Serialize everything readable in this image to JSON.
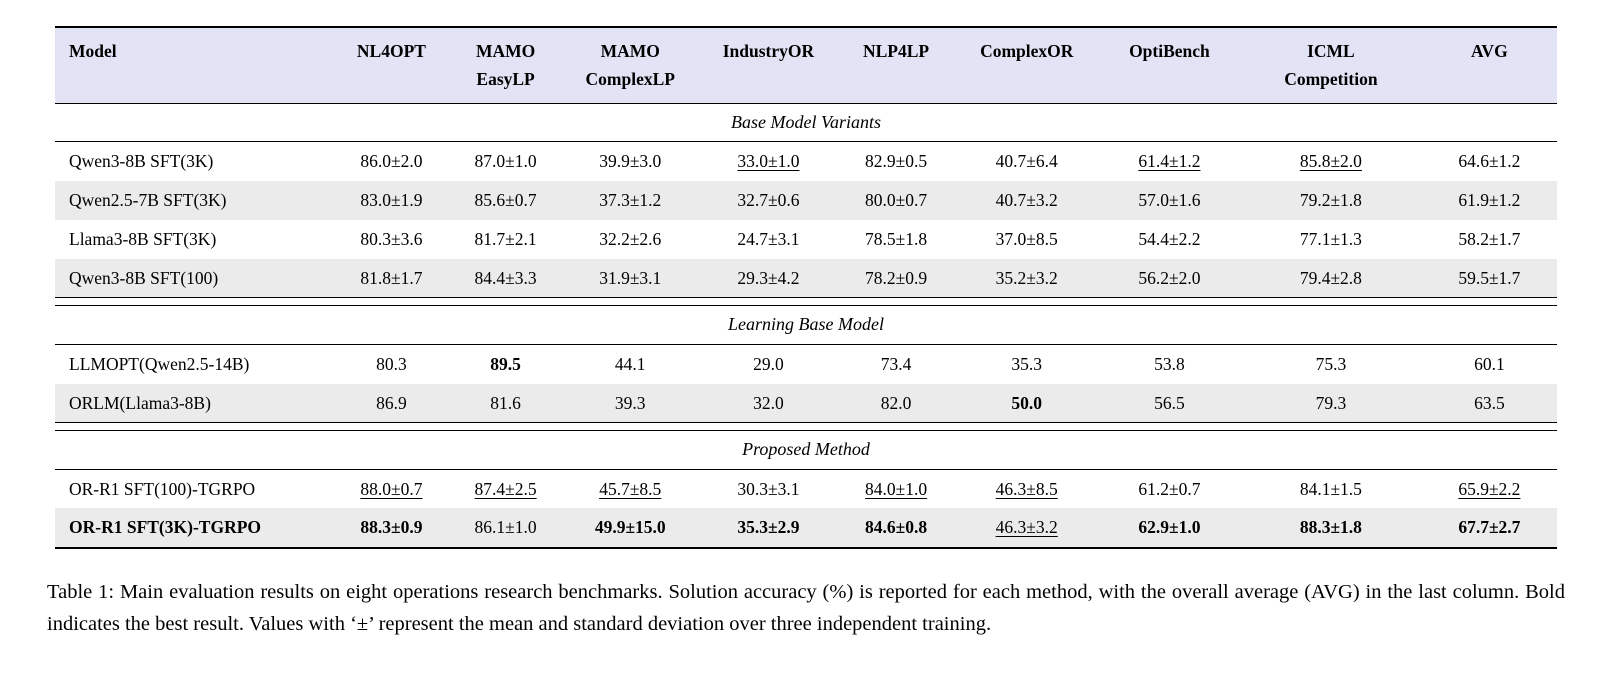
{
  "colors": {
    "header_bg": "#e3e3f6",
    "row_shade": "#ebebeb"
  },
  "table": {
    "columns": [
      {
        "label": "Model",
        "sublabel": ""
      },
      {
        "label": "NL4OPT",
        "sublabel": ""
      },
      {
        "label": "MAMO",
        "sublabel": "EasyLP"
      },
      {
        "label": "MAMO",
        "sublabel": "ComplexLP"
      },
      {
        "label": "IndustryOR",
        "sublabel": ""
      },
      {
        "label": "NLP4LP",
        "sublabel": ""
      },
      {
        "label": "ComplexOR",
        "sublabel": ""
      },
      {
        "label": "OptiBench",
        "sublabel": ""
      },
      {
        "label": "ICML",
        "sublabel": "Competition"
      },
      {
        "label": "AVG",
        "sublabel": ""
      }
    ],
    "sections": [
      {
        "title": "Base Model Variants",
        "rows": [
          {
            "model": "Qwen3-8B SFT(3K)",
            "model_bold": false,
            "shaded": false,
            "cells": [
              {
                "text": "86.0±2.0"
              },
              {
                "text": "87.0±1.0"
              },
              {
                "text": "39.9±3.0"
              },
              {
                "text": "33.0±1.0",
                "underline": true
              },
              {
                "text": "82.9±0.5"
              },
              {
                "text": "40.7±6.4"
              },
              {
                "text": "61.4±1.2",
                "underline": true
              },
              {
                "text": "85.8±2.0",
                "underline": true
              },
              {
                "text": "64.6±1.2"
              }
            ]
          },
          {
            "model": "Qwen2.5-7B SFT(3K)",
            "model_bold": false,
            "shaded": true,
            "cells": [
              {
                "text": "83.0±1.9"
              },
              {
                "text": "85.6±0.7"
              },
              {
                "text": "37.3±1.2"
              },
              {
                "text": "32.7±0.6"
              },
              {
                "text": "80.0±0.7"
              },
              {
                "text": "40.7±3.2"
              },
              {
                "text": "57.0±1.6"
              },
              {
                "text": "79.2±1.8"
              },
              {
                "text": "61.9±1.2"
              }
            ]
          },
          {
            "model": "Llama3-8B SFT(3K)",
            "model_bold": false,
            "shaded": false,
            "cells": [
              {
                "text": "80.3±3.6"
              },
              {
                "text": "81.7±2.1"
              },
              {
                "text": "32.2±2.6"
              },
              {
                "text": "24.7±3.1"
              },
              {
                "text": "78.5±1.8"
              },
              {
                "text": "37.0±8.5"
              },
              {
                "text": "54.4±2.2"
              },
              {
                "text": "77.1±1.3"
              },
              {
                "text": "58.2±1.7"
              }
            ]
          },
          {
            "model": "Qwen3-8B SFT(100)",
            "model_bold": false,
            "shaded": true,
            "cells": [
              {
                "text": "81.8±1.7"
              },
              {
                "text": "84.4±3.3"
              },
              {
                "text": "31.9±3.1"
              },
              {
                "text": "29.3±4.2"
              },
              {
                "text": "78.2±0.9"
              },
              {
                "text": "35.2±3.2"
              },
              {
                "text": "56.2±2.0"
              },
              {
                "text": "79.4±2.8"
              },
              {
                "text": "59.5±1.7"
              }
            ]
          }
        ]
      },
      {
        "title": "Learning Base Model",
        "rows": [
          {
            "model": "LLMOPT(Qwen2.5-14B)",
            "model_bold": false,
            "shaded": false,
            "cells": [
              {
                "text": "80.3"
              },
              {
                "text": "89.5",
                "bold": true
              },
              {
                "text": "44.1"
              },
              {
                "text": "29.0"
              },
              {
                "text": "73.4"
              },
              {
                "text": "35.3"
              },
              {
                "text": "53.8"
              },
              {
                "text": "75.3"
              },
              {
                "text": "60.1"
              }
            ]
          },
          {
            "model": "ORLM(Llama3-8B)",
            "model_bold": false,
            "shaded": true,
            "cells": [
              {
                "text": "86.9"
              },
              {
                "text": "81.6"
              },
              {
                "text": "39.3"
              },
              {
                "text": "32.0"
              },
              {
                "text": "82.0"
              },
              {
                "text": "50.0",
                "bold": true
              },
              {
                "text": "56.5"
              },
              {
                "text": "79.3"
              },
              {
                "text": "63.5"
              }
            ]
          }
        ]
      },
      {
        "title": "Proposed Method",
        "rows": [
          {
            "model": "OR-R1 SFT(100)-TGRPO",
            "model_bold": false,
            "shaded": false,
            "cells": [
              {
                "text": "88.0±0.7",
                "underline": true
              },
              {
                "text": "87.4±2.5",
                "underline": true
              },
              {
                "text": "45.7±8.5",
                "underline": true
              },
              {
                "text": "30.3±3.1"
              },
              {
                "text": "84.0±1.0",
                "underline": true
              },
              {
                "text": "46.3±8.5",
                "underline": true
              },
              {
                "text": "61.2±0.7"
              },
              {
                "text": "84.1±1.5"
              },
              {
                "text": "65.9±2.2",
                "underline": true
              }
            ]
          },
          {
            "model": "OR-R1 SFT(3K)-TGRPO",
            "model_bold": true,
            "shaded": true,
            "cells": [
              {
                "text": "88.3±0.9",
                "bold": true
              },
              {
                "text": "86.1±1.0"
              },
              {
                "text": "49.9±15.0",
                "bold": true
              },
              {
                "text": "35.3±2.9",
                "bold": true
              },
              {
                "text": "84.6±0.8",
                "bold": true
              },
              {
                "text": "46.3±3.2",
                "underline": true
              },
              {
                "text": "62.9±1.0",
                "bold": true
              },
              {
                "text": "88.3±1.8",
                "bold": true
              },
              {
                "text": "67.7±2.7",
                "bold": true
              }
            ]
          }
        ]
      }
    ]
  },
  "caption": "Table 1: Main evaluation results on eight operations research benchmarks. Solution accuracy (%) is reported for each method, with the overall average (AVG) in the last column. Bold indicates the best result. Values with ‘±’ represent the mean and standard deviation over three independent training."
}
